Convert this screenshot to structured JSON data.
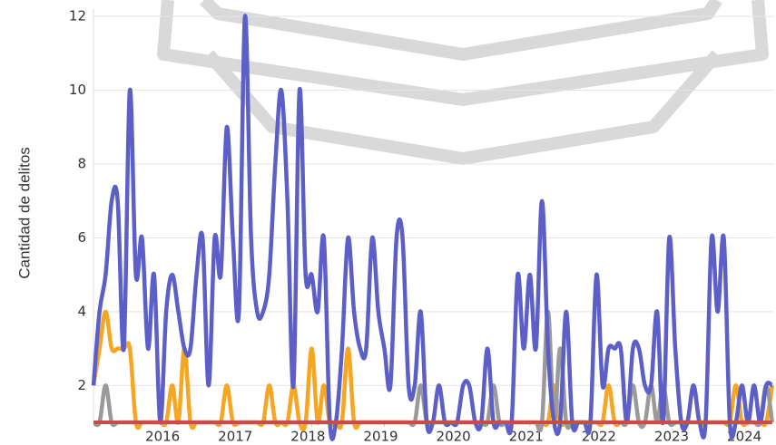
{
  "chart_data": {
    "type": "line",
    "y_label": "Cantidad de delitos",
    "x": [
      2015.0,
      2015.083,
      2015.167,
      2015.25,
      2015.333,
      2015.417,
      2015.5,
      2015.583,
      2015.667,
      2015.75,
      2015.833,
      2015.917,
      2016.0,
      2016.083,
      2016.167,
      2016.25,
      2016.333,
      2016.417,
      2016.5,
      2016.583,
      2016.667,
      2016.75,
      2016.833,
      2016.917,
      2017.0,
      2017.083,
      2017.167,
      2017.25,
      2017.333,
      2017.417,
      2017.5,
      2017.583,
      2017.667,
      2017.75,
      2017.833,
      2017.917,
      2018.0,
      2018.083,
      2018.167,
      2018.25,
      2018.333,
      2018.417,
      2018.5,
      2018.583,
      2018.667,
      2018.75,
      2018.833,
      2018.917,
      2019.0,
      2019.083,
      2019.167,
      2019.25,
      2019.333,
      2019.417,
      2019.5,
      2019.583,
      2019.667,
      2019.75,
      2019.833,
      2019.917,
      2020.0,
      2020.083,
      2020.167,
      2020.25,
      2020.333,
      2020.417,
      2020.5,
      2020.583,
      2020.667,
      2020.75,
      2020.833,
      2020.917,
      2021.0,
      2021.083,
      2021.167,
      2021.25,
      2021.333,
      2021.417,
      2021.5,
      2021.583,
      2021.667,
      2021.75,
      2021.833,
      2021.917,
      2022.0,
      2022.083,
      2022.167,
      2022.25,
      2022.333,
      2022.417,
      2022.5,
      2022.583,
      2022.667,
      2022.75,
      2022.833,
      2022.917,
      2023.0,
      2023.083,
      2023.167,
      2023.25,
      2023.333,
      2023.417,
      2023.5,
      2023.583,
      2023.667,
      2023.75,
      2023.833,
      2023.917,
      2024.0,
      2024.083,
      2024.167,
      2024.25,
      2024.333
    ],
    "series": [
      {
        "color": "#5b5fc7",
        "values": [
          2,
          4,
          5,
          7,
          7,
          3,
          10,
          5,
          6,
          3,
          5,
          1,
          4,
          5,
          4,
          3,
          3,
          5,
          6,
          2,
          6,
          5,
          9,
          6,
          4,
          12,
          6,
          4,
          4,
          5,
          8,
          10,
          7,
          2,
          10,
          5,
          5,
          4,
          6,
          1,
          1,
          3,
          6,
          4,
          3,
          3,
          6,
          4,
          3,
          2,
          6,
          6,
          2,
          2,
          4,
          1,
          1,
          2,
          1,
          1,
          1,
          2,
          2,
          1,
          1,
          3,
          1,
          1,
          1,
          1,
          5,
          3,
          5,
          3,
          7,
          3,
          1,
          1,
          4,
          1,
          1,
          1,
          1,
          5,
          2,
          3,
          3,
          3,
          1,
          3,
          3,
          2,
          2,
          4,
          1,
          6,
          3,
          1,
          1,
          2,
          1,
          1,
          6,
          4,
          6,
          1,
          1,
          2,
          1,
          2,
          1,
          2,
          2
        ]
      },
      {
        "color": "#f5a623",
        "values": [
          2,
          3,
          4,
          3,
          3,
          3,
          3,
          1,
          1,
          1,
          1,
          1,
          1,
          2,
          1,
          3,
          1,
          1,
          1,
          1,
          1,
          1,
          2,
          1,
          1,
          1,
          1,
          1,
          1,
          2,
          1,
          1,
          1,
          2,
          1,
          1,
          3,
          1,
          2,
          1,
          1,
          1,
          3,
          1,
          1,
          1,
          1,
          1,
          1,
          1,
          1,
          1,
          1,
          1,
          1,
          1,
          1,
          1,
          1,
          1,
          1,
          1,
          1,
          1,
          1,
          1,
          1,
          1,
          1,
          1,
          1,
          1,
          1,
          1,
          1,
          1,
          2,
          1,
          1,
          1,
          1,
          1,
          1,
          1,
          1,
          2,
          1,
          1,
          1,
          1,
          1,
          1,
          1,
          1,
          1,
          1,
          1,
          1,
          1,
          2,
          1,
          1,
          1,
          1,
          1,
          1,
          2,
          1,
          1,
          1,
          1,
          1,
          2
        ]
      },
      {
        "color": "#9a9a9a",
        "values": [
          1,
          1,
          2,
          1,
          1,
          1,
          1,
          1,
          1,
          1,
          1,
          1,
          1,
          1,
          1,
          1,
          1,
          1,
          1,
          1,
          1,
          1,
          1,
          1,
          1,
          1,
          1,
          1,
          1,
          1,
          1,
          1,
          1,
          1,
          1,
          1,
          1,
          1,
          1,
          1,
          1,
          1,
          1,
          1,
          1,
          1,
          1,
          1,
          1,
          1,
          1,
          1,
          1,
          1,
          2,
          1,
          1,
          1,
          1,
          1,
          1,
          1,
          1,
          1,
          1,
          1,
          2,
          1,
          1,
          1,
          1,
          1,
          1,
          1,
          1,
          4,
          1,
          3,
          1,
          1,
          1,
          1,
          1,
          1,
          1,
          1,
          1,
          1,
          1,
          2,
          1,
          1,
          2,
          1,
          2,
          1,
          1,
          1,
          1,
          1,
          1,
          1,
          1,
          1,
          1,
          1,
          1,
          1,
          1,
          1,
          1,
          2,
          1
        ]
      },
      {
        "color": "#c94c4c",
        "values": [
          1,
          1,
          1,
          1,
          1,
          1,
          1,
          1,
          1,
          1,
          1,
          1,
          1,
          1,
          1,
          1,
          1,
          1,
          1,
          1,
          1,
          1,
          1,
          1,
          1,
          1,
          1,
          1,
          1,
          1,
          1,
          1,
          1,
          1,
          1,
          1,
          1,
          1,
          1,
          1,
          1,
          1,
          1,
          1,
          1,
          1,
          1,
          1,
          1,
          1,
          1,
          1,
          1,
          1,
          1,
          1,
          1,
          1,
          1,
          1,
          1,
          1,
          1,
          1,
          1,
          1,
          1,
          1,
          1,
          1,
          1,
          1,
          1,
          1,
          1,
          1,
          1,
          1,
          1,
          1,
          1,
          1,
          1,
          1,
          1,
          1,
          1,
          1,
          1,
          1,
          1,
          1,
          1,
          1,
          1,
          1,
          1,
          1,
          1,
          1,
          1,
          1,
          1,
          1,
          1,
          1,
          1,
          1,
          1,
          1,
          1,
          1,
          1
        ]
      }
    ],
    "xlim": [
      2015,
      2024.36
    ],
    "xticks": [
      2016,
      2017,
      2018,
      2019,
      2020,
      2021,
      2022,
      2023,
      2024
    ],
    "ylim": [
      1,
      12.2
    ],
    "yticks": [
      2,
      4,
      6,
      8,
      10,
      12
    ],
    "grid": true
  }
}
